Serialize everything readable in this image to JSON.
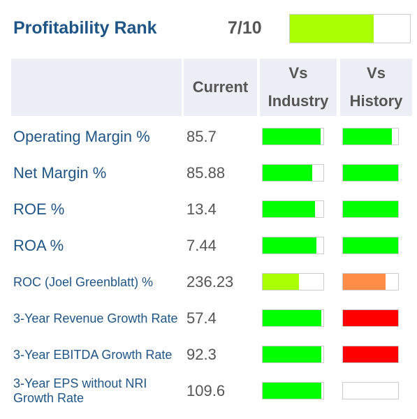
{
  "header": {
    "title": "Profitability Rank",
    "rank": "7/10",
    "rank_fraction": 0.7,
    "rank_color": "#aaff00"
  },
  "columns": {
    "current": "Current",
    "vs_industry_line1": "Vs",
    "vs_industry_line2": "Industry",
    "vs_history_line1": "Vs",
    "vs_history_line2": "History"
  },
  "colors": {
    "green": "#00ff00",
    "lime": "#aaff00",
    "orange": "#ff8c47",
    "red": "#ff0000",
    "label_blue": "#1f5585"
  },
  "rows": [
    {
      "label": "Operating Margin %",
      "current": "85.7",
      "vs_industry": {
        "fraction": 0.95,
        "color": "#00ff00"
      },
      "vs_history": {
        "fraction": 0.88,
        "color": "#00ff00"
      }
    },
    {
      "label": "Net Margin %",
      "current": "85.88",
      "vs_industry": {
        "fraction": 0.82,
        "color": "#00ff00"
      },
      "vs_history": {
        "fraction": 1.0,
        "color": "#00ff00"
      }
    },
    {
      "label": "ROE %",
      "current": "13.4",
      "vs_industry": {
        "fraction": 0.86,
        "color": "#00ff00"
      },
      "vs_history": {
        "fraction": 1.0,
        "color": "#00ff00"
      }
    },
    {
      "label": "ROA %",
      "current": "7.44",
      "vs_industry": {
        "fraction": 0.88,
        "color": "#00ff00"
      },
      "vs_history": {
        "fraction": 1.0,
        "color": "#00ff00"
      }
    },
    {
      "label": "ROC (Joel Greenblatt) %",
      "current": "236.23",
      "vs_industry": {
        "fraction": 0.6,
        "color": "#aaff00"
      },
      "vs_history": {
        "fraction": 0.77,
        "color": "#ff8c47"
      }
    },
    {
      "label": "3-Year Revenue Growth Rate",
      "current": "57.4",
      "vs_industry": {
        "fraction": 0.97,
        "color": "#00ff00"
      },
      "vs_history": {
        "fraction": 1.0,
        "color": "#ff0000"
      }
    },
    {
      "label": "3-Year EBITDA Growth Rate",
      "current": "92.3",
      "vs_industry": {
        "fraction": 0.97,
        "color": "#00ff00"
      },
      "vs_history": {
        "fraction": 1.0,
        "color": "#ff0000"
      }
    },
    {
      "label": "3-Year EPS without NRI Growth Rate",
      "current": "109.6",
      "vs_industry": {
        "fraction": 0.97,
        "color": "#00ff00"
      },
      "vs_history": {
        "fraction": 0.0,
        "color": "#ffffff"
      }
    }
  ]
}
